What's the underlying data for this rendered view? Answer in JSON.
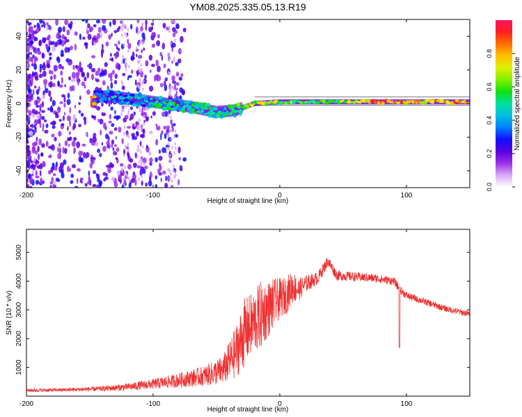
{
  "page_title": "YM08.2025.335.05.13.R19",
  "chart_data": [
    {
      "type": "heatmap",
      "title": "YM08.2025.335.05.13.R19",
      "xlabel": "Height of straight line (km)",
      "ylabel": "Frequency (Hz)",
      "xlim": [
        -200,
        150
      ],
      "ylim": [
        -50,
        50
      ],
      "x_ticks": [
        -200,
        -100,
        0,
        100
      ],
      "y_ticks": [
        -40,
        -20,
        0,
        20,
        40
      ],
      "colorbar": {
        "label": "Normalized spectral amplitude",
        "range": [
          0,
          1
        ],
        "ticks": [
          "0.0",
          "0.2",
          "0.4",
          "0.6",
          "0.8"
        ],
        "colors": [
          "#ffffff",
          "#d9a8f5",
          "#9b30e8",
          "#5a00e0",
          "#1010ff",
          "#0080ff",
          "#00c0e0",
          "#00e0a0",
          "#10e010",
          "#80f000",
          "#e0f000",
          "#ffc000",
          "#ff7000",
          "#ff2020",
          "#ff1060"
        ]
      },
      "signal_track": [
        {
          "x": -145,
          "freq": 4,
          "amp": 0.3
        },
        {
          "x": -130,
          "freq": 4,
          "amp": 0.35
        },
        {
          "x": -110,
          "freq": 2,
          "amp": 0.4
        },
        {
          "x": -90,
          "freq": 0,
          "amp": 0.45
        },
        {
          "x": -70,
          "freq": -2,
          "amp": 0.45
        },
        {
          "x": -50,
          "freq": -5,
          "amp": 0.45
        },
        {
          "x": -35,
          "freq": -4,
          "amp": 0.5
        },
        {
          "x": -20,
          "freq": 0,
          "amp": 0.65
        },
        {
          "x": 0,
          "freq": 1,
          "amp": 0.6
        },
        {
          "x": 20,
          "freq": 1,
          "amp": 0.55
        },
        {
          "x": 50,
          "freq": 1,
          "amp": 0.6
        },
        {
          "x": 80,
          "freq": 1,
          "amp": 0.85
        },
        {
          "x": 100,
          "freq": 1,
          "amp": 0.75
        },
        {
          "x": 150,
          "freq": 1,
          "amp": 0.8
        }
      ]
    },
    {
      "type": "line",
      "xlabel": "Height of straight line (km)",
      "ylabel": "SNR (10 * v/v)",
      "xlim": [
        -200,
        150
      ],
      "ylim": [
        0,
        5800
      ],
      "x_ticks": [
        -200,
        -100,
        0,
        100
      ],
      "y_ticks": [
        1000,
        2000,
        3000,
        4000,
        5000
      ],
      "color": "#ee3030",
      "series": [
        {
          "name": "SNR",
          "x": [
            -200,
            -180,
            -160,
            -140,
            -120,
            -100,
            -80,
            -60,
            -45,
            -35,
            -28,
            -22,
            -15,
            -10,
            -5,
            0,
            5,
            10,
            15,
            20,
            30,
            38,
            45,
            60,
            75,
            90,
            95,
            100,
            110,
            120,
            130,
            140,
            150
          ],
          "values": [
            200,
            210,
            230,
            260,
            320,
            420,
            550,
            700,
            900,
            1500,
            2200,
            2500,
            2800,
            3000,
            3200,
            3400,
            3500,
            3800,
            3700,
            3900,
            4100,
            4700,
            4200,
            4150,
            4100,
            4000,
            3700,
            3500,
            3350,
            3200,
            3050,
            2950,
            2850
          ],
          "noise": [
            60,
            60,
            70,
            90,
            130,
            180,
            250,
            350,
            500,
            900,
            1200,
            1100,
            1200,
            1000,
            900,
            700,
            650,
            600,
            400,
            300,
            220,
            200,
            180,
            160,
            150,
            140,
            140,
            130,
            120,
            120,
            110,
            110,
            110
          ]
        }
      ]
    }
  ]
}
